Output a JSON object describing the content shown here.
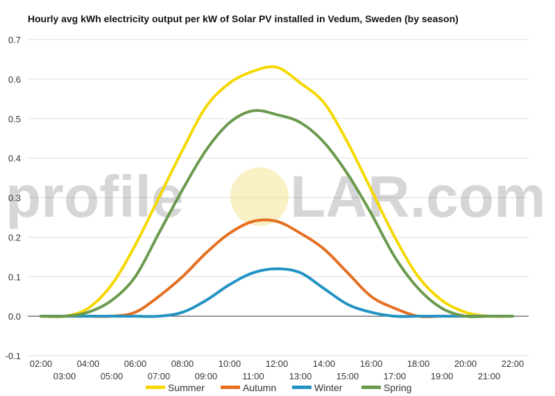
{
  "chart_data": {
    "type": "line",
    "title": "Hourly avg kWh electricity output per kW of Solar PV installed in Vedum, Sweden (by season)",
    "xlabel": "",
    "ylabel": "",
    "ylim": [
      -0.1,
      0.7
    ],
    "yticks": [
      "-0.1",
      "0.0",
      "0.1",
      "0.2",
      "0.3",
      "0.4",
      "0.5",
      "0.6",
      "0.7"
    ],
    "grid": true,
    "legend_position": "bottom",
    "categories": [
      "02:00",
      "03:00",
      "04:00",
      "05:00",
      "06:00",
      "07:00",
      "08:00",
      "09:00",
      "10:00",
      "11:00",
      "12:00",
      "13:00",
      "14:00",
      "15:00",
      "16:00",
      "17:00",
      "18:00",
      "19:00",
      "20:00",
      "21:00",
      "22:00"
    ],
    "series": [
      {
        "name": "Summer",
        "color": "#f5d800",
        "values": [
          0.0,
          0.0,
          0.02,
          0.08,
          0.18,
          0.3,
          0.42,
          0.53,
          0.59,
          0.62,
          0.63,
          0.59,
          0.54,
          0.44,
          0.32,
          0.2,
          0.1,
          0.04,
          0.01,
          0.0,
          0.0
        ]
      },
      {
        "name": "Autumn",
        "color": "#e46f21",
        "values": [
          0.0,
          0.0,
          0.0,
          0.0,
          0.01,
          0.05,
          0.1,
          0.16,
          0.21,
          0.24,
          0.24,
          0.21,
          0.17,
          0.11,
          0.05,
          0.02,
          0.0,
          0.0,
          0.0,
          0.0,
          0.0
        ]
      },
      {
        "name": "Winter",
        "color": "#2393c3",
        "values": [
          0.0,
          0.0,
          0.0,
          0.0,
          0.0,
          0.0,
          0.01,
          0.04,
          0.08,
          0.11,
          0.12,
          0.11,
          0.07,
          0.03,
          0.01,
          0.0,
          0.0,
          0.0,
          0.0,
          0.0,
          0.0
        ]
      },
      {
        "name": "Spring",
        "color": "#6b9a4e",
        "values": [
          0.0,
          0.0,
          0.01,
          0.04,
          0.1,
          0.21,
          0.32,
          0.42,
          0.49,
          0.52,
          0.51,
          0.49,
          0.44,
          0.36,
          0.26,
          0.15,
          0.07,
          0.02,
          0.0,
          0.0,
          0.0
        ]
      }
    ]
  },
  "watermark": {
    "left": "profile",
    "right": "LAR.com",
    "sun_color": "#f5e6a0"
  }
}
